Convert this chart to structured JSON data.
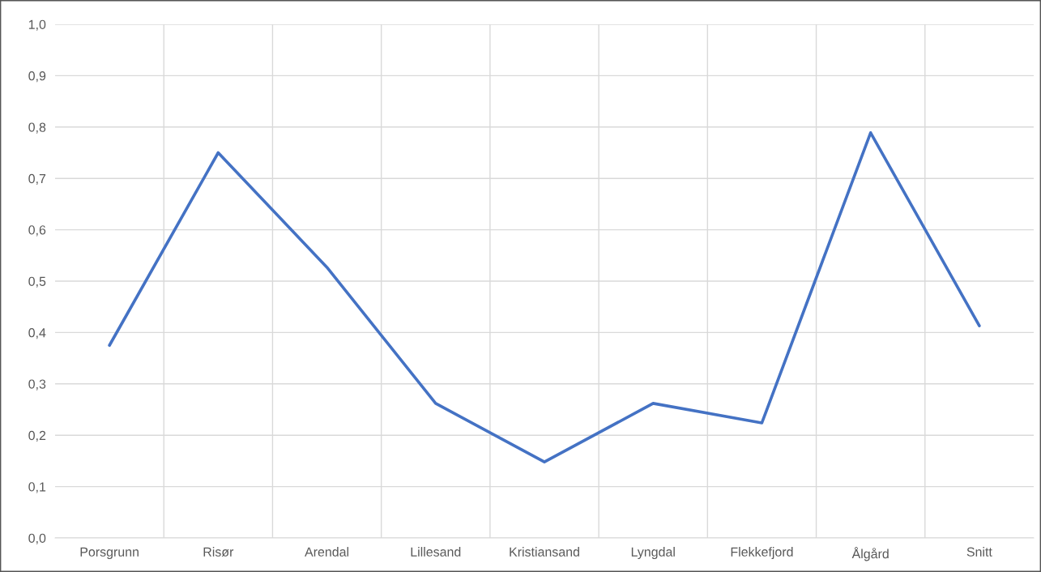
{
  "chart_data": {
    "type": "line",
    "categories": [
      "Porsgrunn",
      "Risør",
      "Arendal",
      "Lillesand",
      "Kristiansand",
      "Lyngdal",
      "Flekkefjord",
      "Ålgård",
      "Snitt"
    ],
    "series": [
      {
        "color": "#4472c4",
        "values": [
          0.375,
          0.75,
          0.527,
          0.262,
          0.148,
          0.262,
          0.224,
          0.789,
          0.413
        ]
      }
    ],
    "ylim": [
      0,
      1
    ],
    "yticks": [
      {
        "value": 0,
        "label": "0,0"
      },
      {
        "value": 0.1,
        "label": "0,1"
      },
      {
        "value": 0.2,
        "label": "0,2"
      },
      {
        "value": 0.3,
        "label": "0,3"
      },
      {
        "value": 0.4,
        "label": "0,4"
      },
      {
        "value": 0.5,
        "label": "0,5"
      },
      {
        "value": 0.6,
        "label": "0,6"
      },
      {
        "value": 0.7,
        "label": "0,7"
      },
      {
        "value": 0.8,
        "label": "0,8"
      },
      {
        "value": 0.9,
        "label": "0,9"
      },
      {
        "value": 1,
        "label": "1,0"
      }
    ],
    "grid": true,
    "marker": "none",
    "line_style": "solid"
  }
}
